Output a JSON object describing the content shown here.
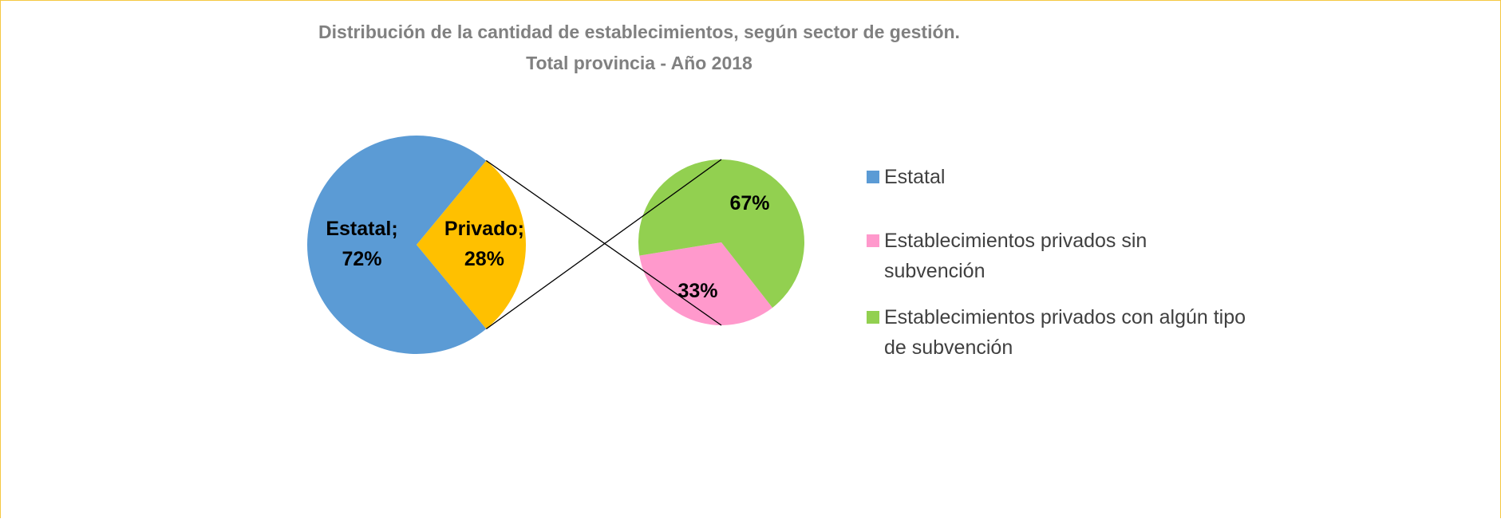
{
  "chart_data": {
    "type": "pie-of-pie",
    "title": "Distribución de la cantidad de establecimientos, según sector de gestión.",
    "subtitle": "Total provincia - Año 2018",
    "data_label_separator": ";",
    "categories": [
      "Estatal",
      "Privado"
    ],
    "values": [
      72,
      28
    ],
    "value_labels": [
      "72%",
      "28%"
    ],
    "colors": [
      "#5b9bd5",
      "#ffc000"
    ],
    "secondary": {
      "categories": [
        "Establecimientos privados sin subvención",
        "Establecimientos privados con algún tipo de subvención"
      ],
      "values": [
        33,
        67
      ],
      "value_labels": [
        "33%",
        "67%"
      ],
      "colors": [
        "#ff99cc",
        "#92d050"
      ]
    },
    "legend": "right"
  }
}
